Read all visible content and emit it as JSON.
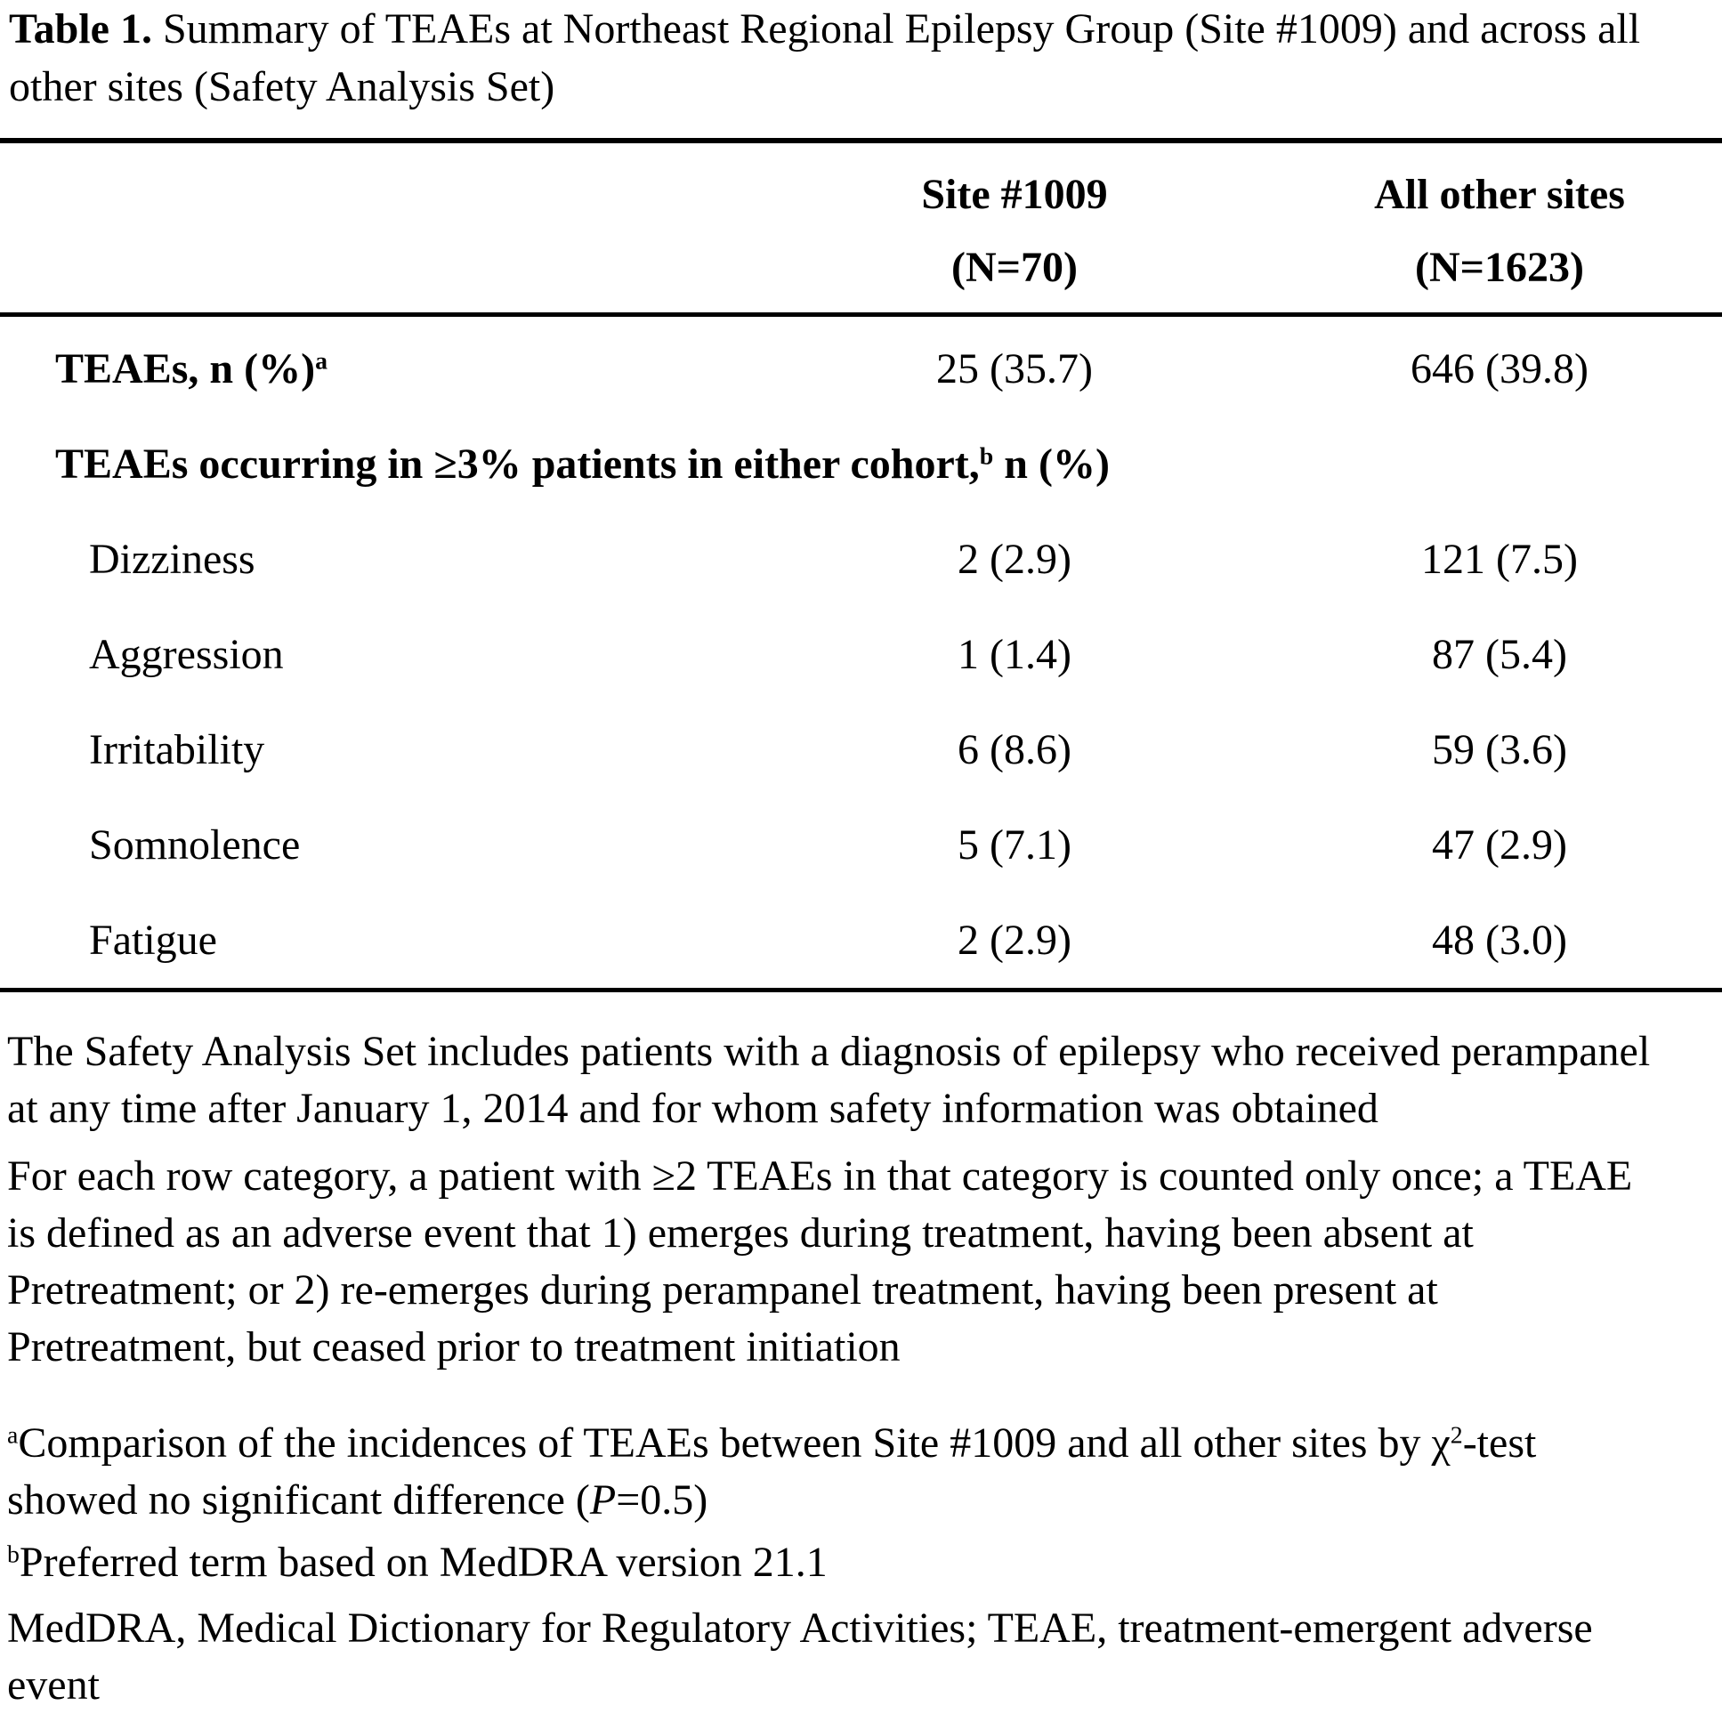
{
  "page": {
    "background_color": "#ffffff",
    "text_color": "#000000"
  },
  "title": {
    "line1": "**Table 1.** Summary of TEAEs at Northeast Regional Epilepsy Group (Site #1009) and across all",
    "line2": "other sites (Safety Analysis Set)"
  },
  "table": {
    "header": {
      "col_site": {
        "line1": "Site #1009",
        "line2": "(N=70)"
      },
      "col_other": {
        "line1": "All other sites",
        "line2": "(N=1623)"
      }
    },
    "rows": [
      {
        "label": "TEAEs, n (%)^{a}",
        "site_1009": "25 (35.7)",
        "all_other_sites": "646 (39.8)"
      },
      {
        "label": "TEAEs occurring in ≥3% patients in either cohort,^{b} n (%)",
        "site_1009": "",
        "all_other_sites": ""
      },
      {
        "label": "Dizziness",
        "site_1009": "2 (2.9)",
        "all_other_sites": "121 (7.5)"
      },
      {
        "label": "Aggression",
        "site_1009": "1 (1.4)",
        "all_other_sites": "87 (5.4)"
      },
      {
        "label": "Irritability",
        "site_1009": "6 (8.6)",
        "all_other_sites": "59 (3.6)"
      },
      {
        "label": "Somnolence",
        "site_1009": "5 (7.1)",
        "all_other_sites": "47 (2.9)"
      },
      {
        "label": "Fatigue",
        "site_1009": "2 (2.9)",
        "all_other_sites": "48 (3.0)"
      }
    ]
  },
  "footnotes": [
    {
      "lines": [
        "The Safety Analysis Set includes patients with a diagnosis of epilepsy who received perampanel",
        "at any time after January 1, 2014 and for whom safety information was obtained"
      ]
    },
    {
      "lines": [
        "For each row category, a patient with ≥2 TEAEs in that category is counted only once; a TEAE",
        "is defined as an adverse event that 1) emerges during treatment, having been absent at",
        "Pretreatment; or 2) re-emerges during perampanel treatment, having been present at",
        "Pretreatment, but ceased prior to treatment initiation"
      ]
    },
    {
      "lines": [
        "^{a}Comparison of the incidences of TEAEs between Site #1009 and all other sites by χ^{2}-test",
        "showed no significant difference (*P*=0.5)"
      ]
    },
    {
      "lines": [
        "^{b}Preferred term based on MedDRA version 21.1"
      ]
    },
    {
      "lines": [
        "MedDRA, Medical Dictionary for Regulatory Activities; TEAE, treatment-emergent adverse",
        "event"
      ]
    }
  ]
}
